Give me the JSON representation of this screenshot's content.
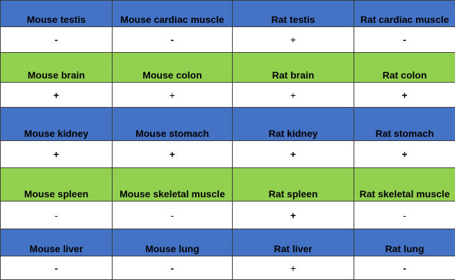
{
  "colors": {
    "blue_header": "#4472c4",
    "green_header": "#92d050",
    "value_background": "#ffffff",
    "border": "#3a3a3a"
  },
  "table": {
    "rows": [
      {
        "type": "header",
        "color": "blue",
        "cells": [
          "Mouse testis",
          "Mouse cardiac muscle",
          "Rat testis",
          "Rat cardiac muscle"
        ]
      },
      {
        "type": "value",
        "cells": [
          "-",
          "-",
          "+",
          "-"
        ]
      },
      {
        "type": "header",
        "color": "green",
        "cells": [
          "Mouse brain",
          "Mouse colon",
          "Rat brain",
          "Rat colon"
        ]
      },
      {
        "type": "value",
        "cells": [
          "+",
          "+",
          "+",
          "+"
        ]
      },
      {
        "type": "header",
        "color": "blue",
        "cells": [
          "Mouse kidney",
          "Mouse stomach",
          "Rat kidney",
          "Rat stomach"
        ]
      },
      {
        "type": "value",
        "cells": [
          "+",
          "+",
          "+",
          "+"
        ]
      },
      {
        "type": "header",
        "color": "green",
        "cells": [
          "Mouse spleen",
          "Mouse skeletal muscle",
          "Rat spleen",
          "Rat skeletal muscle"
        ]
      },
      {
        "type": "value",
        "cells": [
          "-",
          "-",
          "+",
          "-"
        ]
      },
      {
        "type": "header",
        "color": "blue",
        "cells": [
          "Mouse liver",
          "Mouse lung",
          "Rat liver",
          "Rat lung"
        ]
      },
      {
        "type": "value",
        "cells": [
          "-",
          "-",
          "+",
          "-"
        ]
      }
    ]
  }
}
